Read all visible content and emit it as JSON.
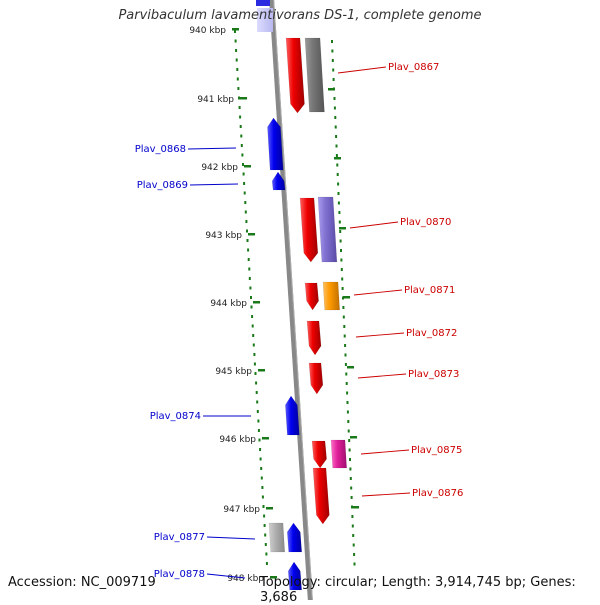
{
  "title": "Parvibaculum lavamentivorans DS-1, complete genome",
  "footer": {
    "accession": "Accession: NC_009719",
    "topology": "Topology: circular; Length: 3,914,745 bp; Genes: 3,686"
  },
  "colors": {
    "forward_gene": "#ee0000",
    "reverse_gene": "#0000ee",
    "backbone": "#888888",
    "tick": "#1a7a1a",
    "label_forward": "#cc0000",
    "label_reverse": "#0000cc"
  },
  "ticks": [
    "940 kbp",
    "941 kbp",
    "942 kbp",
    "943 kbp",
    "944 kbp",
    "945 kbp",
    "946 kbp",
    "947 kbp",
    "948 kbp"
  ],
  "genes": [
    {
      "label": "Plav_0867",
      "strand": "forward",
      "feature_color": "#777777"
    },
    {
      "label": "Plav_0868",
      "strand": "reverse"
    },
    {
      "label": "Plav_0869",
      "strand": "reverse"
    },
    {
      "label": "Plav_0870",
      "strand": "forward",
      "feature_color": "#8070d0"
    },
    {
      "label": "Plav_0871",
      "strand": "forward",
      "feature_color": "#ff9900"
    },
    {
      "label": "Plav_0872",
      "strand": "forward"
    },
    {
      "label": "Plav_0873",
      "strand": "forward"
    },
    {
      "label": "Plav_0874",
      "strand": "reverse"
    },
    {
      "label": "Plav_0875",
      "strand": "forward",
      "feature_color": "#e0209a"
    },
    {
      "label": "Plav_0876",
      "strand": "forward"
    },
    {
      "label": "Plav_0877",
      "strand": "reverse",
      "feature_color": "#b0b0b0"
    },
    {
      "label": "Plav_0878",
      "strand": "reverse"
    }
  ]
}
